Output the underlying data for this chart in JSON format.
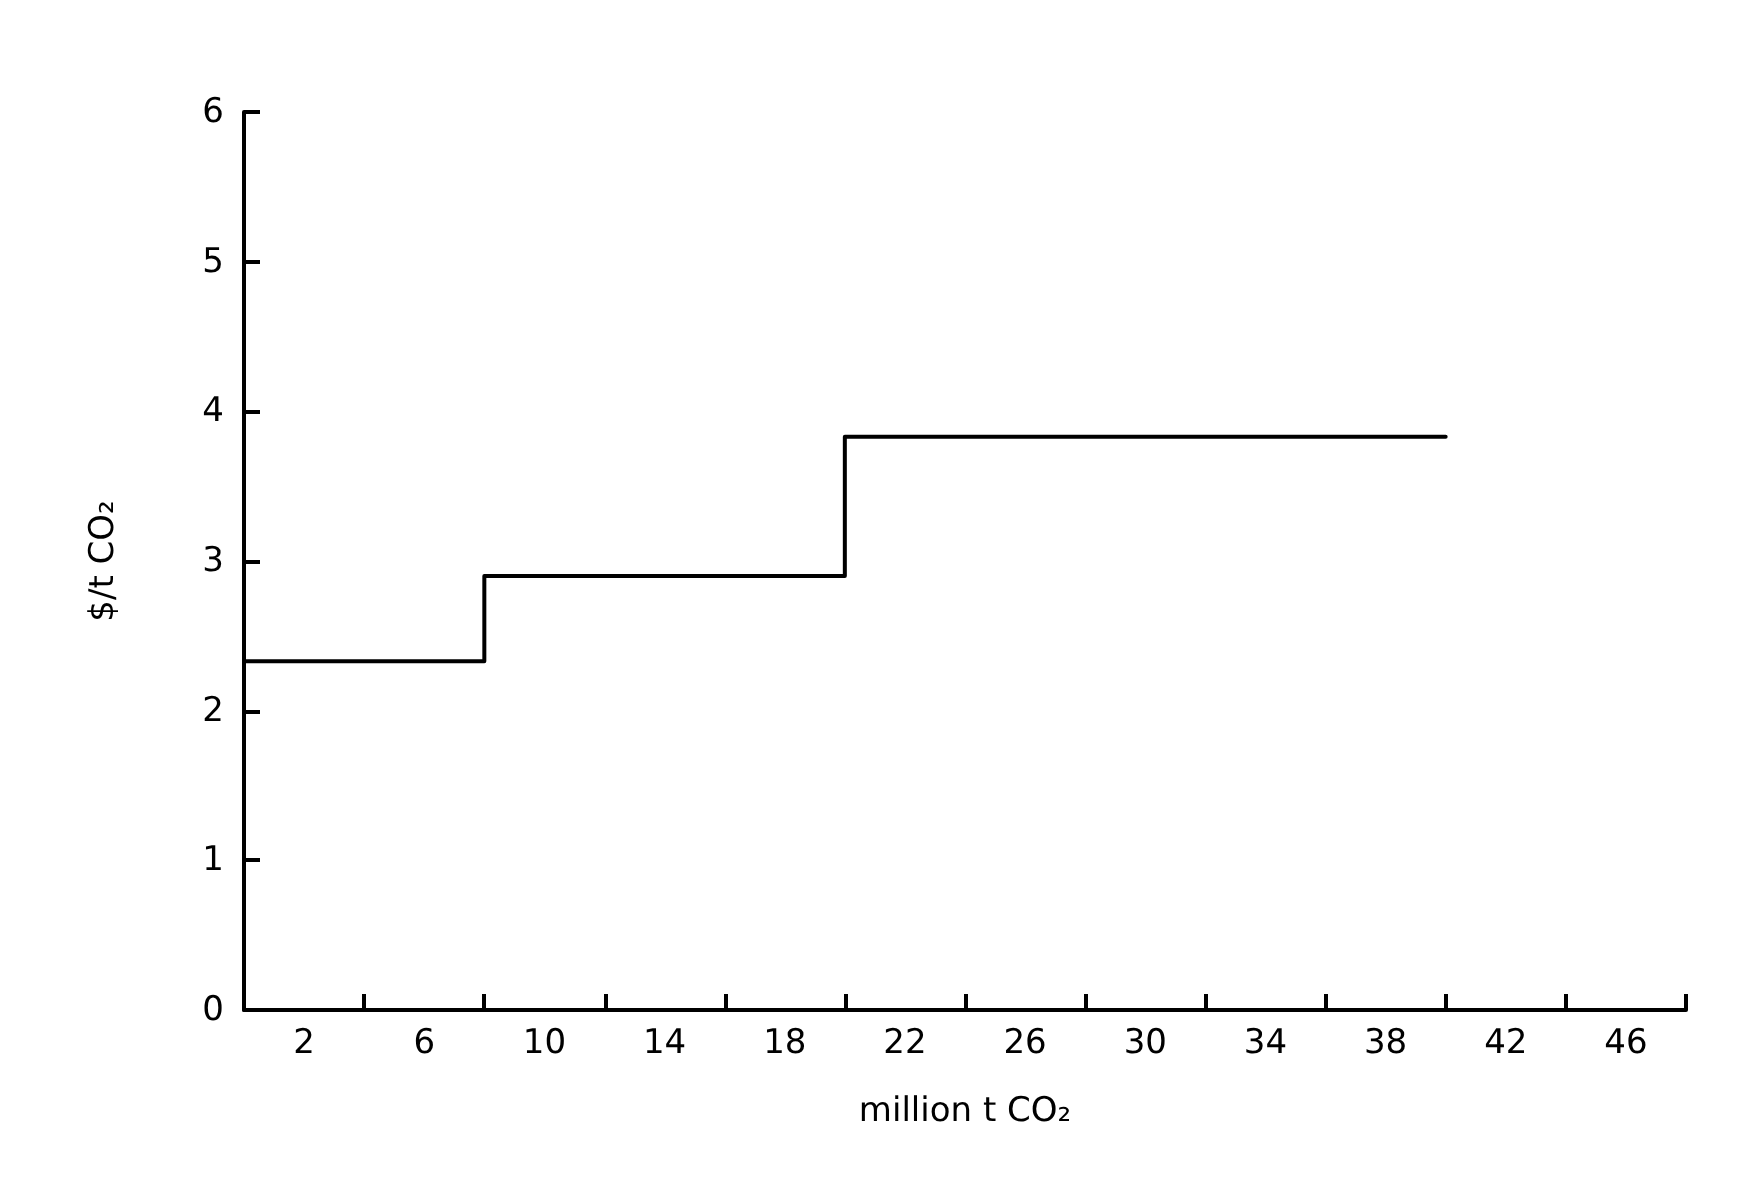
{
  "chart_data": {
    "type": "step",
    "xlabel": "million t CO₂",
    "ylabel": "$/t CO₂",
    "x": [
      0,
      8,
      20,
      40
    ],
    "series": [
      {
        "color": "#000000",
        "values": [
          2.33,
          2.9,
          3.83,
          3.83
        ]
      }
    ],
    "xlim": [
      0,
      48
    ],
    "xticks": [
      {
        "value": 2,
        "label": "2"
      },
      {
        "value": 4,
        "label": null
      },
      {
        "value": 6,
        "label": "6"
      },
      {
        "value": 8,
        "label": null
      },
      {
        "value": 10,
        "label": "10"
      },
      {
        "value": 12,
        "label": null
      },
      {
        "value": 14,
        "label": "14"
      },
      {
        "value": 16,
        "label": null
      },
      {
        "value": 18,
        "label": "18"
      },
      {
        "value": 20,
        "label": null
      },
      {
        "value": 22,
        "label": "22"
      },
      {
        "value": 24,
        "label": null
      },
      {
        "value": 26,
        "label": "26"
      },
      {
        "value": 28,
        "label": null
      },
      {
        "value": 30,
        "label": "30"
      },
      {
        "value": 32,
        "label": null
      },
      {
        "value": 34,
        "label": "34"
      },
      {
        "value": 36,
        "label": null
      },
      {
        "value": 38,
        "label": "38"
      },
      {
        "value": 40,
        "label": null
      },
      {
        "value": 42,
        "label": "42"
      },
      {
        "value": 44,
        "label": null
      },
      {
        "value": 46,
        "label": "46"
      },
      {
        "value": 48,
        "label": null
      }
    ],
    "ylim": [
      0,
      6
    ],
    "yticks": [
      0,
      1,
      2,
      3,
      4,
      5,
      6
    ],
    "grid": false,
    "marker": "none",
    "line_style": "solid"
  }
}
